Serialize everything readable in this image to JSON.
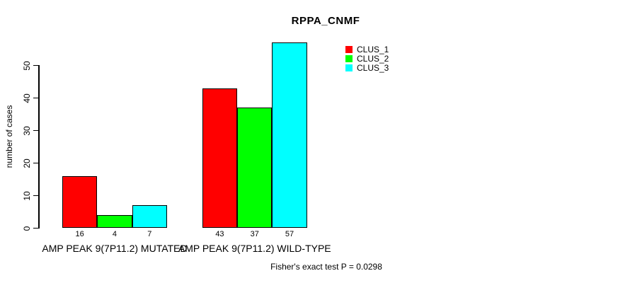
{
  "chart_data": {
    "type": "bar",
    "title": "RPPA_CNMF",
    "xlabel": "",
    "ylabel": "number of cases",
    "categories": [
      "AMP PEAK 9(7P11.2) MUTATED",
      "AMP PEAK 9(7P11.2) WILD-TYPE"
    ],
    "series": [
      {
        "name": "CLUS_1",
        "color": "#ff0000",
        "values": [
          16,
          43
        ]
      },
      {
        "name": "CLUS_2",
        "color": "#00ff00",
        "values": [
          4,
          37
        ]
      },
      {
        "name": "CLUS_3",
        "color": "#00ffff",
        "values": [
          7,
          57
        ]
      }
    ],
    "yticks": [
      0,
      10,
      20,
      30,
      40,
      50
    ],
    "ylim": [
      0,
      57
    ],
    "grid": false,
    "bar_outline_color": "#000000",
    "legend_position": "top-right",
    "annotation": "Fisher's exact test P = 0.0298"
  }
}
